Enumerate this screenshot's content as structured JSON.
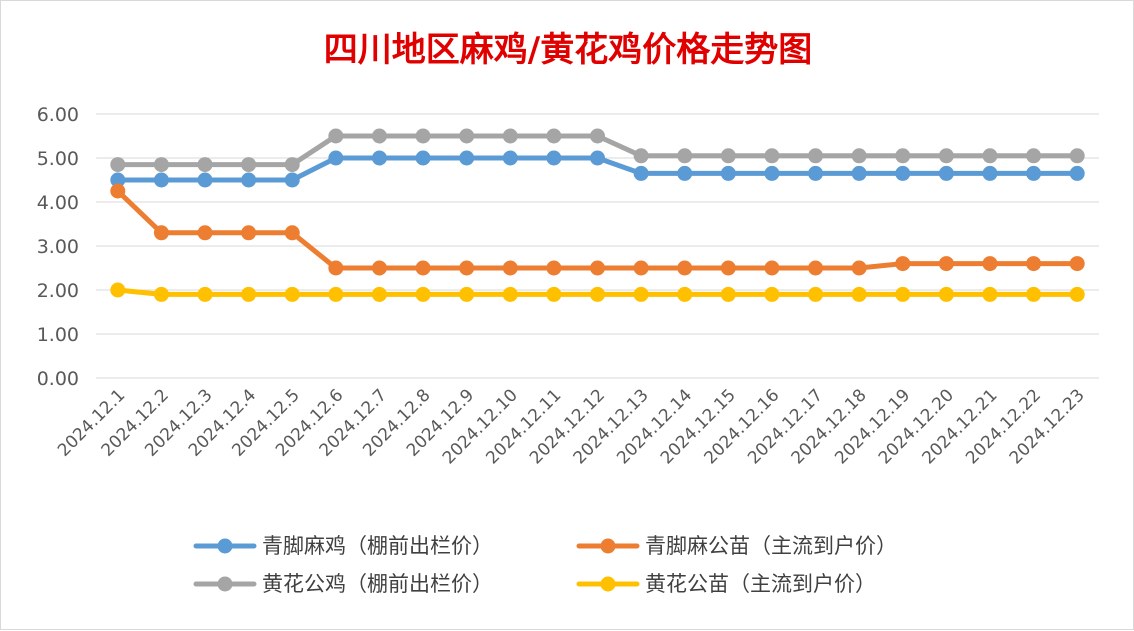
{
  "chart_data": {
    "type": "line",
    "title": "四川地区麻鸡/黄花鸡价格走势图",
    "xlabel": "",
    "ylabel": "",
    "ylim": [
      0,
      6
    ],
    "yticks": [
      "0.00",
      "1.00",
      "2.00",
      "3.00",
      "4.00",
      "5.00",
      "6.00"
    ],
    "grid": true,
    "legend_position": "bottom",
    "categories": [
      "2024.12.1",
      "2024.12.2",
      "2024.12.3",
      "2024.12.4",
      "2024.12.5",
      "2024.12.6",
      "2024.12.7",
      "2024.12.8",
      "2024.12.9",
      "2024.12.10",
      "2024.12.11",
      "2024.12.12",
      "2024.12.13",
      "2024.12.14",
      "2024.12.15",
      "2024.12.16",
      "2024.12.17",
      "2024.12.18",
      "2024.12.19",
      "2024.12.20",
      "2024.12.21",
      "2024.12.22",
      "2024.12.23"
    ],
    "series": [
      {
        "name": "青脚麻鸡（棚前出栏价）",
        "color": "#5b9bd5",
        "values": [
          4.5,
          4.5,
          4.5,
          4.5,
          4.5,
          5.0,
          5.0,
          5.0,
          5.0,
          5.0,
          5.0,
          5.0,
          4.65,
          4.65,
          4.65,
          4.65,
          4.65,
          4.65,
          4.65,
          4.65,
          4.65,
          4.65,
          4.65
        ]
      },
      {
        "name": "青脚麻公苗（主流到户价）",
        "color": "#ed7d31",
        "values": [
          4.25,
          3.3,
          3.3,
          3.3,
          3.3,
          2.5,
          2.5,
          2.5,
          2.5,
          2.5,
          2.5,
          2.5,
          2.5,
          2.5,
          2.5,
          2.5,
          2.5,
          2.5,
          2.6,
          2.6,
          2.6,
          2.6,
          2.6
        ]
      },
      {
        "name": "黄花公鸡（棚前出栏价）",
        "color": "#a5a5a5",
        "values": [
          4.85,
          4.85,
          4.85,
          4.85,
          4.85,
          5.5,
          5.5,
          5.5,
          5.5,
          5.5,
          5.5,
          5.5,
          5.05,
          5.05,
          5.05,
          5.05,
          5.05,
          5.05,
          5.05,
          5.05,
          5.05,
          5.05,
          5.05
        ]
      },
      {
        "name": "黄花公苗（主流到户价）",
        "color": "#ffc000",
        "values": [
          2.0,
          1.9,
          1.9,
          1.9,
          1.9,
          1.9,
          1.9,
          1.9,
          1.9,
          1.9,
          1.9,
          1.9,
          1.9,
          1.9,
          1.9,
          1.9,
          1.9,
          1.9,
          1.9,
          1.9,
          1.9,
          1.9,
          1.9
        ]
      }
    ]
  }
}
